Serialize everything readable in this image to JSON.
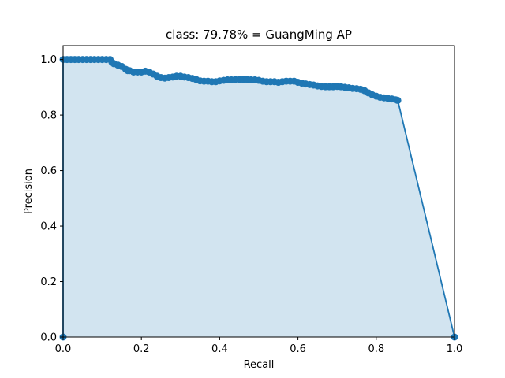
{
  "chart_data": {
    "type": "area",
    "title": "class: 79.78% = GuangMing AP",
    "xlabel": "Recall",
    "ylabel": "Precision",
    "xlim": [
      0,
      1
    ],
    "ylim": [
      0,
      1.05
    ],
    "xticks": [
      "0.0",
      "0.2",
      "0.4",
      "0.6",
      "0.8",
      "1.0"
    ],
    "yticks": [
      "0.0",
      "0.2",
      "0.4",
      "0.6",
      "0.8",
      "1.0"
    ],
    "grid": false,
    "legend": "none",
    "series": [
      {
        "color": "#1f77b4",
        "fill_color": "#1f77b4",
        "x": [
          0.0,
          0.0,
          0.01,
          0.02,
          0.03,
          0.04,
          0.05,
          0.06,
          0.07,
          0.08,
          0.09,
          0.1,
          0.11,
          0.12,
          0.125,
          0.13,
          0.14,
          0.15,
          0.16,
          0.165,
          0.17,
          0.18,
          0.19,
          0.2,
          0.21,
          0.22,
          0.23,
          0.24,
          0.25,
          0.26,
          0.27,
          0.28,
          0.29,
          0.3,
          0.31,
          0.32,
          0.33,
          0.34,
          0.35,
          0.36,
          0.37,
          0.38,
          0.39,
          0.4,
          0.41,
          0.42,
          0.43,
          0.44,
          0.45,
          0.46,
          0.47,
          0.48,
          0.49,
          0.5,
          0.51,
          0.52,
          0.53,
          0.54,
          0.55,
          0.56,
          0.57,
          0.58,
          0.59,
          0.6,
          0.61,
          0.62,
          0.63,
          0.64,
          0.65,
          0.66,
          0.67,
          0.68,
          0.69,
          0.7,
          0.71,
          0.72,
          0.73,
          0.74,
          0.75,
          0.76,
          0.77,
          0.78,
          0.79,
          0.8,
          0.81,
          0.82,
          0.83,
          0.84,
          0.85,
          0.855,
          1.0
        ],
        "y": [
          0.0,
          1.0,
          1.0,
          1.0,
          1.0,
          1.0,
          1.0,
          1.0,
          1.0,
          1.0,
          1.0,
          1.0,
          1.0,
          1.0,
          0.99,
          0.985,
          0.98,
          0.975,
          0.965,
          0.96,
          0.96,
          0.955,
          0.955,
          0.955,
          0.958,
          0.955,
          0.948,
          0.94,
          0.935,
          0.933,
          0.935,
          0.937,
          0.94,
          0.94,
          0.937,
          0.935,
          0.932,
          0.928,
          0.923,
          0.922,
          0.922,
          0.92,
          0.92,
          0.923,
          0.925,
          0.927,
          0.927,
          0.928,
          0.928,
          0.928,
          0.928,
          0.927,
          0.927,
          0.925,
          0.922,
          0.92,
          0.92,
          0.92,
          0.918,
          0.92,
          0.922,
          0.922,
          0.922,
          0.918,
          0.915,
          0.912,
          0.91,
          0.908,
          0.905,
          0.903,
          0.902,
          0.902,
          0.902,
          0.903,
          0.902,
          0.9,
          0.898,
          0.896,
          0.895,
          0.893,
          0.888,
          0.88,
          0.873,
          0.868,
          0.864,
          0.862,
          0.86,
          0.858,
          0.855,
          0.853,
          0.0
        ]
      }
    ]
  }
}
